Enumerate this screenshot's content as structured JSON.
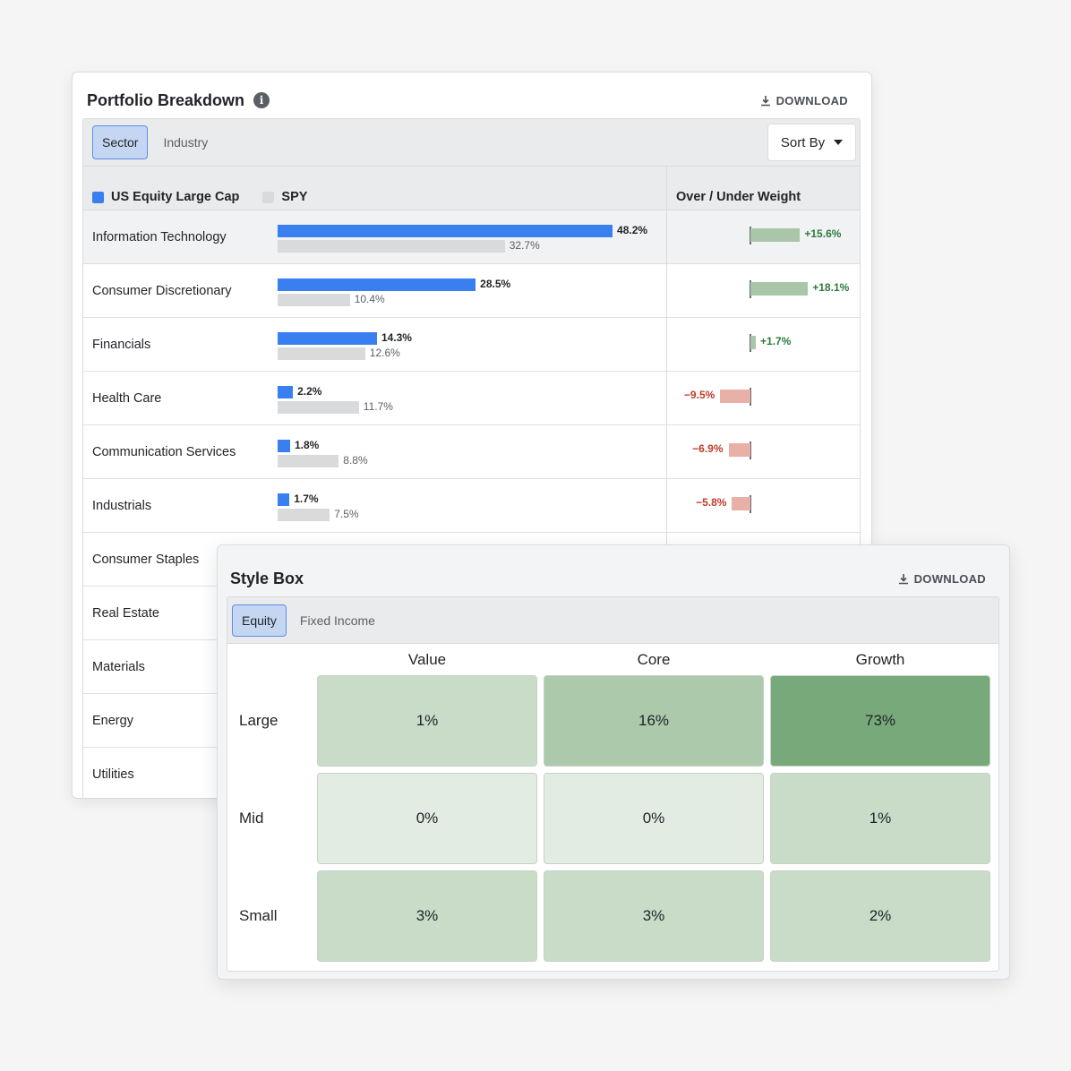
{
  "portfolio": {
    "title": "Portfolio Breakdown",
    "download_label": "DOWNLOAD",
    "tabs": [
      {
        "label": "Sector",
        "active": true
      },
      {
        "label": "Industry",
        "active": false
      }
    ],
    "sort_label": "Sort By",
    "legend": {
      "portfolio_name": "US Equity Large Cap",
      "portfolio_color": "#3a7ff0",
      "benchmark_name": "SPY",
      "benchmark_color": "#d9dadc"
    },
    "ouw_header": "Over / Under Weight",
    "rows": [
      {
        "label": "Information Technology",
        "port": 48.2,
        "bench": 32.7,
        "port_label": "48.2%",
        "bench_label": "32.7%",
        "diff": 15.6,
        "diff_label": "+15.6%"
      },
      {
        "label": "Consumer Discretionary",
        "port": 28.5,
        "bench": 10.4,
        "port_label": "28.5%",
        "bench_label": "10.4%",
        "diff": 18.1,
        "diff_label": "+18.1%"
      },
      {
        "label": "Financials",
        "port": 14.3,
        "bench": 12.6,
        "port_label": "14.3%",
        "bench_label": "12.6%",
        "diff": 1.7,
        "diff_label": "+1.7%"
      },
      {
        "label": "Health Care",
        "port": 2.2,
        "bench": 11.7,
        "port_label": "2.2%",
        "bench_label": "11.7%",
        "diff": -9.5,
        "diff_label": "−9.5%"
      },
      {
        "label": "Communication Services",
        "port": 1.8,
        "bench": 8.8,
        "port_label": "1.8%",
        "bench_label": "8.8%",
        "diff": -6.9,
        "diff_label": "−6.9%"
      },
      {
        "label": "Industrials",
        "port": 1.7,
        "bench": 7.5,
        "port_label": "1.7%",
        "bench_label": "7.5%",
        "diff": -5.8,
        "diff_label": "−5.8%"
      },
      {
        "label": "Consumer Staples"
      },
      {
        "label": "Real Estate"
      },
      {
        "label": "Materials"
      },
      {
        "label": "Energy"
      },
      {
        "label": "Utilities"
      }
    ],
    "colors": {
      "overweight": "#a9c7a8",
      "underweight": "#e8b0a6",
      "overweight_text": "#2f7a3a",
      "underweight_text": "#c23b2b"
    }
  },
  "stylebox": {
    "title": "Style Box",
    "download_label": "DOWNLOAD",
    "tabs": [
      {
        "label": "Equity",
        "active": true
      },
      {
        "label": "Fixed Income",
        "active": false
      }
    ],
    "columns": [
      "Value",
      "Core",
      "Growth"
    ],
    "rows": [
      "Large",
      "Mid",
      "Small"
    ],
    "cells": [
      [
        {
          "label": "1%",
          "value": 1
        },
        {
          "label": "16%",
          "value": 16
        },
        {
          "label": "73%",
          "value": 73
        }
      ],
      [
        {
          "label": "0%",
          "value": 0
        },
        {
          "label": "0%",
          "value": 0
        },
        {
          "label": "1%",
          "value": 1
        }
      ],
      [
        {
          "label": "3%",
          "value": 3
        },
        {
          "label": "3%",
          "value": 3
        },
        {
          "label": "2%",
          "value": 2
        }
      ]
    ],
    "cell_colors": {
      "low": "#e2ece2",
      "light": "#c8dcc8",
      "mid": "#adc9ac",
      "high": "#78a97a"
    }
  }
}
